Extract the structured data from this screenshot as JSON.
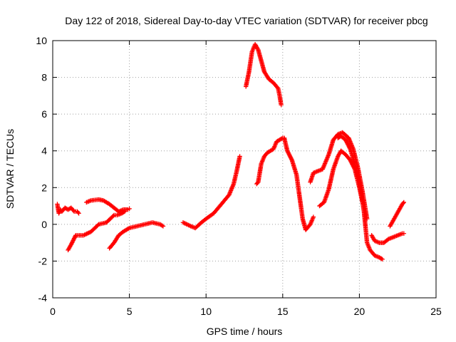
{
  "chart_data": {
    "type": "scatter",
    "title": "Day 122 of 2018, Sidereal Day-to-day VTEC variation (SDTVAR) for receiver pbcg",
    "xlabel": "GPS time / hours",
    "ylabel": "SDTVAR / TECUs",
    "xlim": [
      0,
      25
    ],
    "ylim": [
      -4,
      10
    ],
    "x_ticks": [
      0,
      5,
      10,
      15,
      20,
      25
    ],
    "y_ticks": [
      -4,
      -2,
      0,
      2,
      4,
      6,
      8,
      10
    ],
    "grid": true,
    "marker": "+",
    "color": "#ff0000",
    "series": [
      {
        "name": "s1",
        "x": [
          0.3,
          0.4,
          0.5,
          0.6,
          0.8,
          1.0,
          1.2,
          1.4,
          1.6,
          1.7
        ],
        "y": [
          1.1,
          0.6,
          0.8,
          0.7,
          0.9,
          0.8,
          0.9,
          0.7,
          0.7,
          0.6
        ]
      },
      {
        "name": "s2",
        "x": [
          1.0,
          1.2,
          1.5,
          2.0,
          2.5,
          3.0,
          3.5,
          4.0,
          4.2,
          4.5,
          4.7
        ],
        "y": [
          -1.4,
          -1.1,
          -0.6,
          -0.6,
          -0.4,
          0.0,
          0.1,
          0.5,
          0.5,
          0.6,
          0.7
        ]
      },
      {
        "name": "s3",
        "x": [
          2.2,
          2.5,
          3.0,
          3.3,
          3.7,
          4.0,
          4.3,
          4.6,
          4.9,
          5.0
        ],
        "y": [
          1.2,
          1.3,
          1.35,
          1.3,
          1.1,
          0.9,
          0.7,
          0.8,
          0.8,
          0.85
        ]
      },
      {
        "name": "s4",
        "x": [
          3.7,
          4.0,
          4.3,
          4.6,
          5.0,
          5.5,
          6.0,
          6.5,
          7.0,
          7.2
        ],
        "y": [
          -1.3,
          -1.0,
          -0.6,
          -0.4,
          -0.2,
          -0.1,
          0.0,
          0.1,
          0.0,
          -0.1
        ]
      },
      {
        "name": "s5",
        "x": [
          8.5,
          9.0,
          9.3,
          9.7,
          10.0,
          10.5,
          11.0,
          11.5,
          11.8,
          12.0,
          12.2
        ],
        "y": [
          0.1,
          -0.1,
          -0.2,
          0.1,
          0.3,
          0.6,
          1.1,
          1.6,
          2.2,
          2.9,
          3.7
        ]
      },
      {
        "name": "s6",
        "x": [
          12.6,
          12.8,
          13.0,
          13.2,
          13.4,
          13.6,
          13.8,
          14.1,
          14.4,
          14.7,
          14.8,
          14.9
        ],
        "y": [
          7.5,
          8.3,
          9.4,
          9.8,
          9.5,
          8.9,
          8.3,
          7.9,
          7.7,
          7.4,
          7.0,
          6.5
        ]
      },
      {
        "name": "s7",
        "x": [
          13.3,
          13.4,
          13.6,
          13.8,
          14.0,
          14.2,
          14.4,
          14.6,
          14.8,
          15.0,
          15.1
        ],
        "y": [
          2.2,
          2.3,
          3.3,
          3.7,
          3.9,
          4.0,
          4.1,
          4.5,
          4.6,
          4.7,
          4.7
        ]
      },
      {
        "name": "s8",
        "x": [
          15.1,
          15.3,
          15.6,
          15.9,
          16.1,
          16.3,
          16.5,
          16.8,
          17.0
        ],
        "y": [
          4.7,
          4.0,
          3.5,
          2.7,
          1.5,
          0.3,
          -0.3,
          0.0,
          0.4
        ]
      },
      {
        "name": "s9",
        "x": [
          16.8,
          17.0,
          17.3,
          17.6,
          18.0,
          18.3,
          18.6,
          18.9,
          19.3,
          19.6,
          19.9,
          20.2,
          20.4,
          20.5
        ],
        "y": [
          2.3,
          2.8,
          2.9,
          3.0,
          3.8,
          4.6,
          4.9,
          5.0,
          4.7,
          4.1,
          3.1,
          1.8,
          0.8,
          0.3
        ]
      },
      {
        "name": "s10",
        "x": [
          17.4,
          17.7,
          18.0,
          18.3,
          18.6,
          18.8,
          19.1,
          19.4,
          19.7,
          20.0,
          20.2
        ],
        "y": [
          1.0,
          1.2,
          1.9,
          3.0,
          3.7,
          4.0,
          3.8,
          3.5,
          3.0,
          2.0,
          1.2
        ]
      },
      {
        "name": "s11",
        "x": [
          18.6,
          18.8,
          19.1,
          19.4,
          19.7,
          20.0,
          20.3,
          20.5,
          20.7,
          21.0,
          21.3,
          21.5
        ],
        "y": [
          4.7,
          4.8,
          4.6,
          4.1,
          3.3,
          2.3,
          0.7,
          -1.0,
          -1.4,
          -1.7,
          -1.8,
          -1.9
        ]
      },
      {
        "name": "s12",
        "x": [
          20.8,
          21.0,
          21.3,
          21.6,
          21.9,
          22.2,
          22.5,
          22.8,
          22.9
        ],
        "y": [
          -0.6,
          -0.9,
          -1.0,
          -1.0,
          -0.8,
          -0.7,
          -0.6,
          -0.5,
          -0.5
        ]
      },
      {
        "name": "s13",
        "x": [
          22.0,
          22.2,
          22.4,
          22.6,
          22.8,
          22.9
        ],
        "y": [
          -0.1,
          0.2,
          0.5,
          0.8,
          1.1,
          1.2
        ]
      }
    ]
  }
}
